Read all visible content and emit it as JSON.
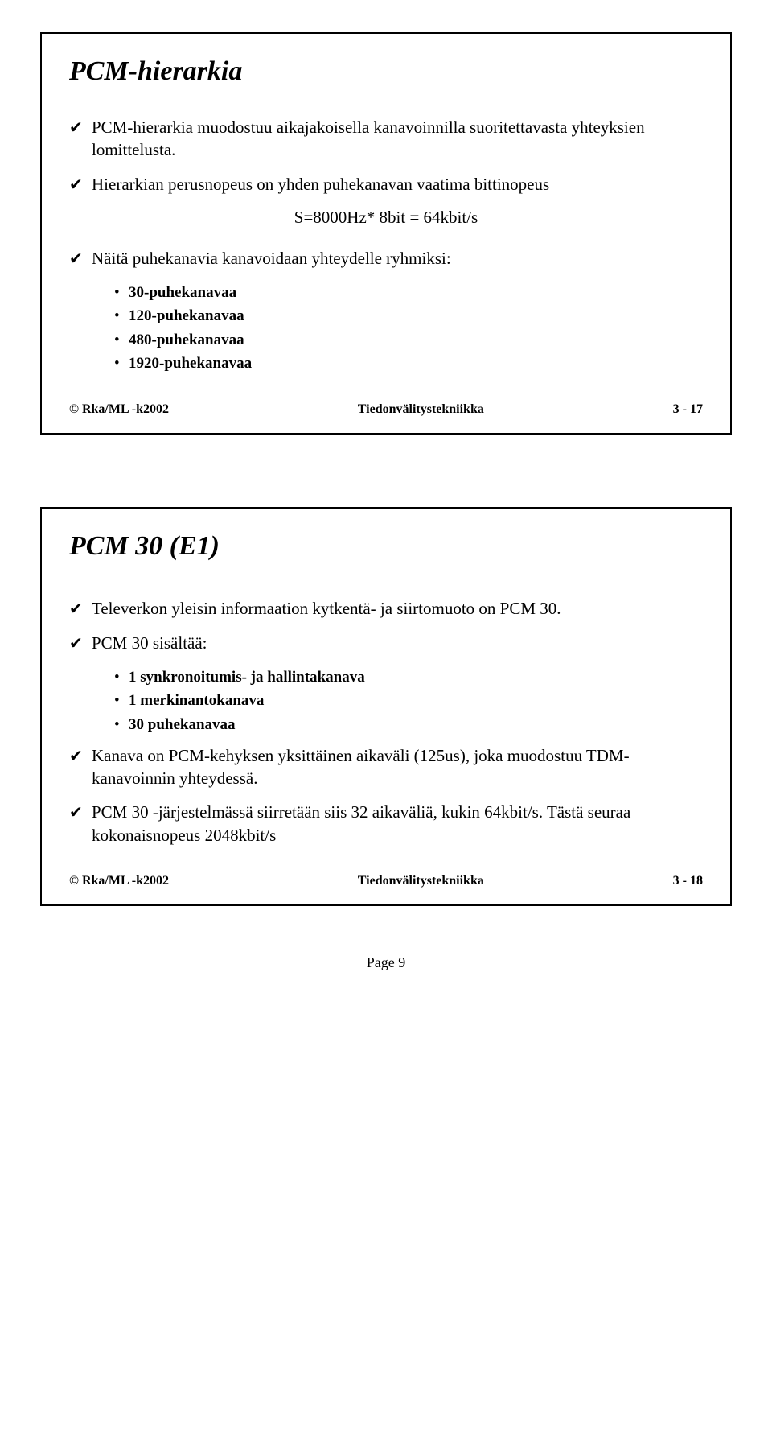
{
  "slide1": {
    "title": "PCM-hierarkia",
    "bullets": [
      {
        "text": "PCM-hierarkia muodostuu aikajakoisella kanavoinnilla suoritettavasta yhteyksien lomittelusta."
      },
      {
        "text": "Hierarkian perusnopeus on yhden puhekanavan vaatima bittinopeus"
      }
    ],
    "formula": "S=8000Hz* 8bit = 64kbit/s",
    "bullet3": "Näitä puhekanavia kanavoidaan yhteydelle ryhmiksi:",
    "sub": [
      "30-puhekanavaa",
      "120-puhekanavaa",
      "480-puhekanavaa",
      "1920-puhekanavaa"
    ],
    "footer": {
      "left": "© Rka/ML -k2002",
      "center": "Tiedonvälitystekniikka",
      "right": "3 - 17"
    }
  },
  "slide2": {
    "title": "PCM 30 (E1)",
    "bullet1": "Televerkon yleisin informaation kytkentä- ja siirtomuoto on PCM 30.",
    "bullet2": "PCM 30 sisältää:",
    "sub": [
      "1 synkronoitumis- ja hallintakanava",
      "1 merkinantokanava",
      "30 puhekanavaa"
    ],
    "bullet3": "Kanava on PCM-kehyksen yksittäinen aikaväli (125us), joka muodostuu TDM-kanavoinnin yhteydessä.",
    "bullet4": "PCM 30 -järjestelmässä siirretään siis 32 aikaväliä, kukin 64kbit/s. Tästä seuraa kokonaisnopeus 2048kbit/s",
    "footer": {
      "left": "© Rka/ML -k2002",
      "center": "Tiedonvälitystekniikka",
      "right": "3 - 18"
    }
  },
  "pagenum": "Page 9",
  "marks": {
    "check": "✔",
    "dot": "•"
  }
}
